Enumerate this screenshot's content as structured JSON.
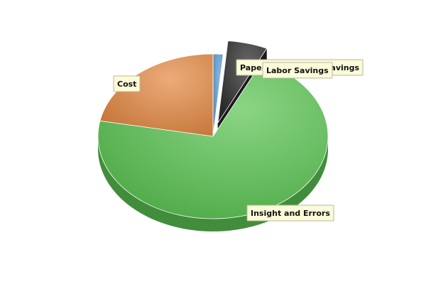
{
  "chart_data": {
    "type": "pie",
    "title": "",
    "style": "3d-exploded",
    "legend": "none",
    "slices": [
      {
        "label": "Paper and Storage Savings",
        "value": 1.4,
        "color": "#5b9bd5"
      },
      {
        "label": "Labor Savings",
        "value": 5.6,
        "color": "#2d2d2d",
        "exploded": true
      },
      {
        "label": "Insight and Errors",
        "value": 71.0,
        "color": "#5cc454"
      },
      {
        "label": "Cost",
        "value": 22.0,
        "color": "#e38a45"
      }
    ]
  }
}
